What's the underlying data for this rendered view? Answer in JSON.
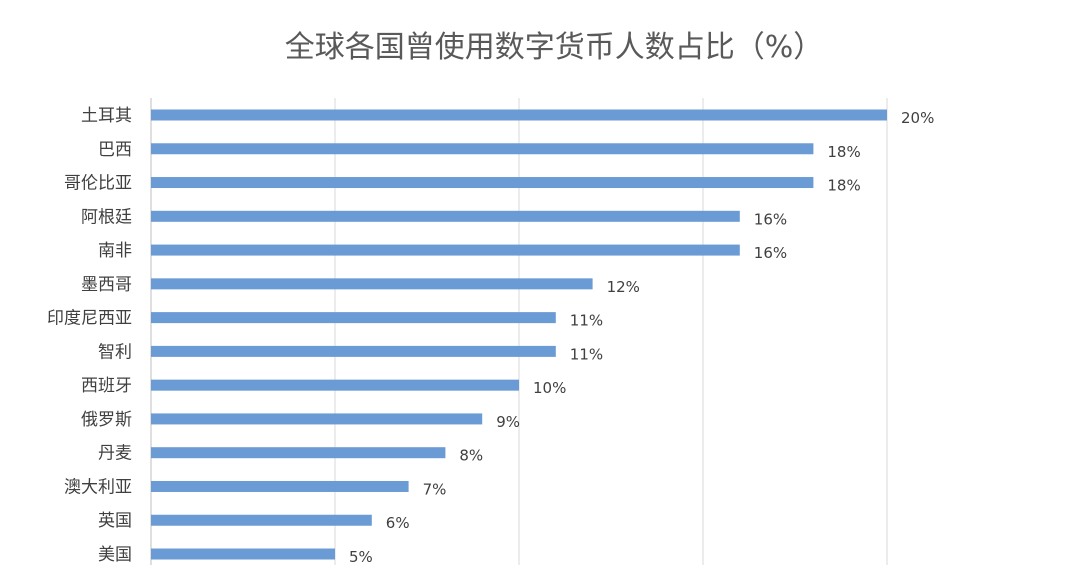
{
  "chart_data": {
    "type": "bar",
    "orientation": "horizontal",
    "title": "全球各国曾使用数字货币人数占比（%）",
    "xlabel": "",
    "ylabel": "",
    "xlim": [
      0,
      20
    ],
    "grid": true,
    "bar_color": "#6a9bd4",
    "categories": [
      "土耳其",
      "巴西",
      "哥伦比亚",
      "阿根廷",
      "南非",
      "墨西哥",
      "印度尼西亚",
      "智利",
      "西班牙",
      "俄罗斯",
      "丹麦",
      "澳大利亚",
      "英国",
      "美国"
    ],
    "values": [
      20,
      18,
      18,
      16,
      16,
      12,
      11,
      11,
      10,
      9,
      8,
      7,
      6,
      5
    ],
    "value_labels": [
      "20%",
      "18%",
      "18%",
      "16%",
      "16%",
      "12%",
      "11%",
      "11%",
      "10%",
      "9%",
      "8%",
      "7%",
      "6%",
      "5%"
    ]
  }
}
